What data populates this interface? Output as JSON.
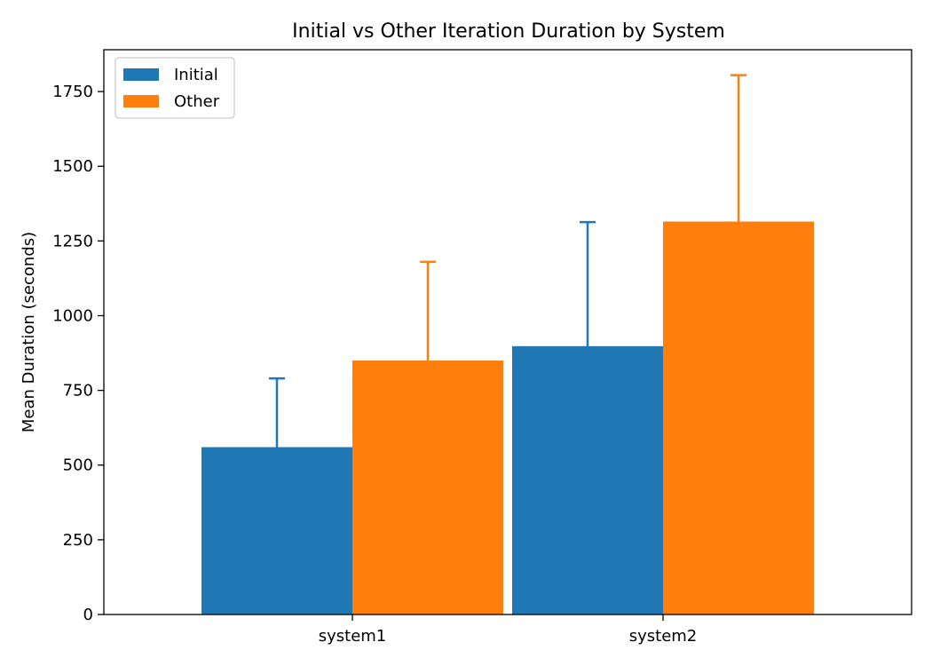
{
  "chart_data": {
    "type": "bar",
    "title": "Initial vs Other Iteration Duration by System",
    "xlabel": "",
    "ylabel": "Mean Duration (seconds)",
    "categories": [
      "system1",
      "system2"
    ],
    "series": [
      {
        "name": "Initial",
        "values": [
          560,
          898
        ],
        "error_upper": [
          230,
          415
        ],
        "color": "#1f77b4"
      },
      {
        "name": "Other",
        "values": [
          850,
          1315
        ],
        "error_upper": [
          330,
          490
        ],
        "color": "#ff7f0e"
      }
    ],
    "ylim": [
      0,
      1890
    ],
    "yticks": [
      0,
      250,
      500,
      750,
      1000,
      1250,
      1500,
      1750
    ],
    "legend": "top-left",
    "grid": false
  }
}
